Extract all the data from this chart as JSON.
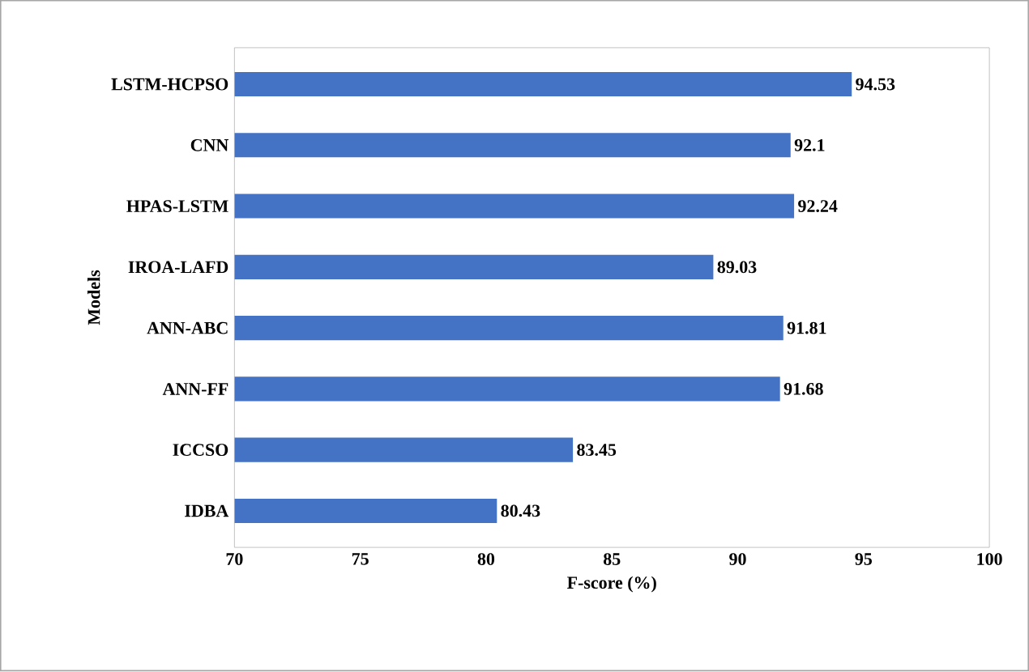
{
  "chart_data": {
    "type": "bar",
    "orientation": "horizontal",
    "xlabel": "F-score (%)",
    "ylabel": "Models",
    "categories": [
      "LSTM-HCPSO",
      "CNN",
      "HPAS-LSTM",
      "IROA-LAFD",
      "ANN-ABC",
      "ANN-FF",
      "ICCSO",
      "IDBA"
    ],
    "values": [
      94.53,
      92.1,
      92.24,
      89.03,
      91.81,
      91.68,
      83.45,
      80.43
    ],
    "color": "#4472c4",
    "xlim": [
      70,
      100
    ],
    "xticks": [
      70,
      75,
      80,
      85,
      90,
      95,
      100
    ],
    "data_labels": true,
    "grid": false
  }
}
